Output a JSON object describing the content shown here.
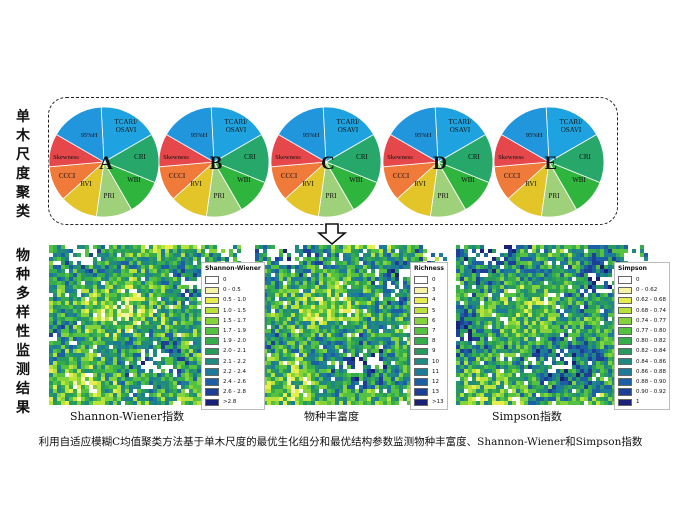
{
  "left_labels": {
    "top": [
      "单",
      "木",
      "尺",
      "度",
      "聚",
      "类"
    ],
    "bottom": [
      "物",
      "种",
      "多",
      "样",
      "性",
      "监",
      "测",
      "结",
      "果"
    ]
  },
  "pie_letters": [
    "A",
    "B",
    "C",
    "D",
    "E"
  ],
  "pie_slice_labels": {
    "tcari": "TCARI/",
    "osavi": "OSAVI",
    "cri": "CRI",
    "wbi": "WBI",
    "pri": "PRI",
    "rvi": "RVI",
    "ccci": "CCCI",
    "skewness": "Skewness",
    "h95": "95%H"
  },
  "colors": {
    "tcari": "#1fa3e0",
    "cri": "#27a86a",
    "wbi": "#2fb53e",
    "pri": "#9fd07a",
    "rvi": "#e3c529",
    "ccci": "#f07a3a",
    "skewness": "#e5474b",
    "h95": "#2196dd"
  },
  "maps": {
    "shannon": {
      "legend_title": "Shannon-Wiener",
      "legend": [
        "0",
        "0 - 0.5",
        "0.5 - 1.0",
        "1.0 - 1.5",
        "1.5 - 1.7",
        "1.7 - 1.9",
        "1.9 - 2.0",
        "2.0 - 2.1",
        "2.1 - 2.2",
        "2.2 - 2.4",
        "2.4 - 2.6",
        "2.6 - 2.8",
        ">2.8"
      ],
      "legend_colors": [
        "#ffffff",
        "#f6f3a6",
        "#e6ee4d",
        "#b9e23a",
        "#84d33a",
        "#55c140",
        "#36ad4d",
        "#299a5e",
        "#208a80",
        "#1d7a98",
        "#1c5fa5",
        "#1d3f96",
        "#1a2178"
      ],
      "caption": "Shannon-Wiener指数"
    },
    "richness": {
      "legend_title": "Richness",
      "legend": [
        "0",
        "3",
        "4",
        "5",
        "6",
        "7",
        "8",
        "9",
        "10",
        "11",
        "12",
        "13",
        ">13"
      ],
      "legend_colors": [
        "#ffffff",
        "#f6f3a6",
        "#e6ee4d",
        "#b9e23a",
        "#84d33a",
        "#55c140",
        "#36ad4d",
        "#299a5e",
        "#208a80",
        "#1d7a98",
        "#1c5fa5",
        "#1d3f96",
        "#1a2178"
      ],
      "caption": "物种丰富度"
    },
    "simpson": {
      "legend_title": "Simpson",
      "legend": [
        "0",
        "0 - 0.62",
        "0.62 - 0.68",
        "0.68 - 0.74",
        "0.74 - 0.77",
        "0.77 - 0.80",
        "0.80 - 0.82",
        "0.82 - 0.84",
        "0.84 - 0.86",
        "0.86 - 0.88",
        "0.88 - 0.90",
        "0.90 - 0.92",
        "1"
      ],
      "legend_colors": [
        "#ffffff",
        "#f6f3a6",
        "#e6ee4d",
        "#b9e23a",
        "#84d33a",
        "#55c140",
        "#36ad4d",
        "#299a5e",
        "#208a80",
        "#1d7a98",
        "#1c5fa5",
        "#1d3f96",
        "#1a2178"
      ],
      "caption": "Simpson指数"
    }
  },
  "bottom_caption": "利用自适应模糊C均值聚类方法基于单木尺度的最优生化组分和最优结构参数监测物种丰富度、Shannon-Wiener和Simpson指数"
}
